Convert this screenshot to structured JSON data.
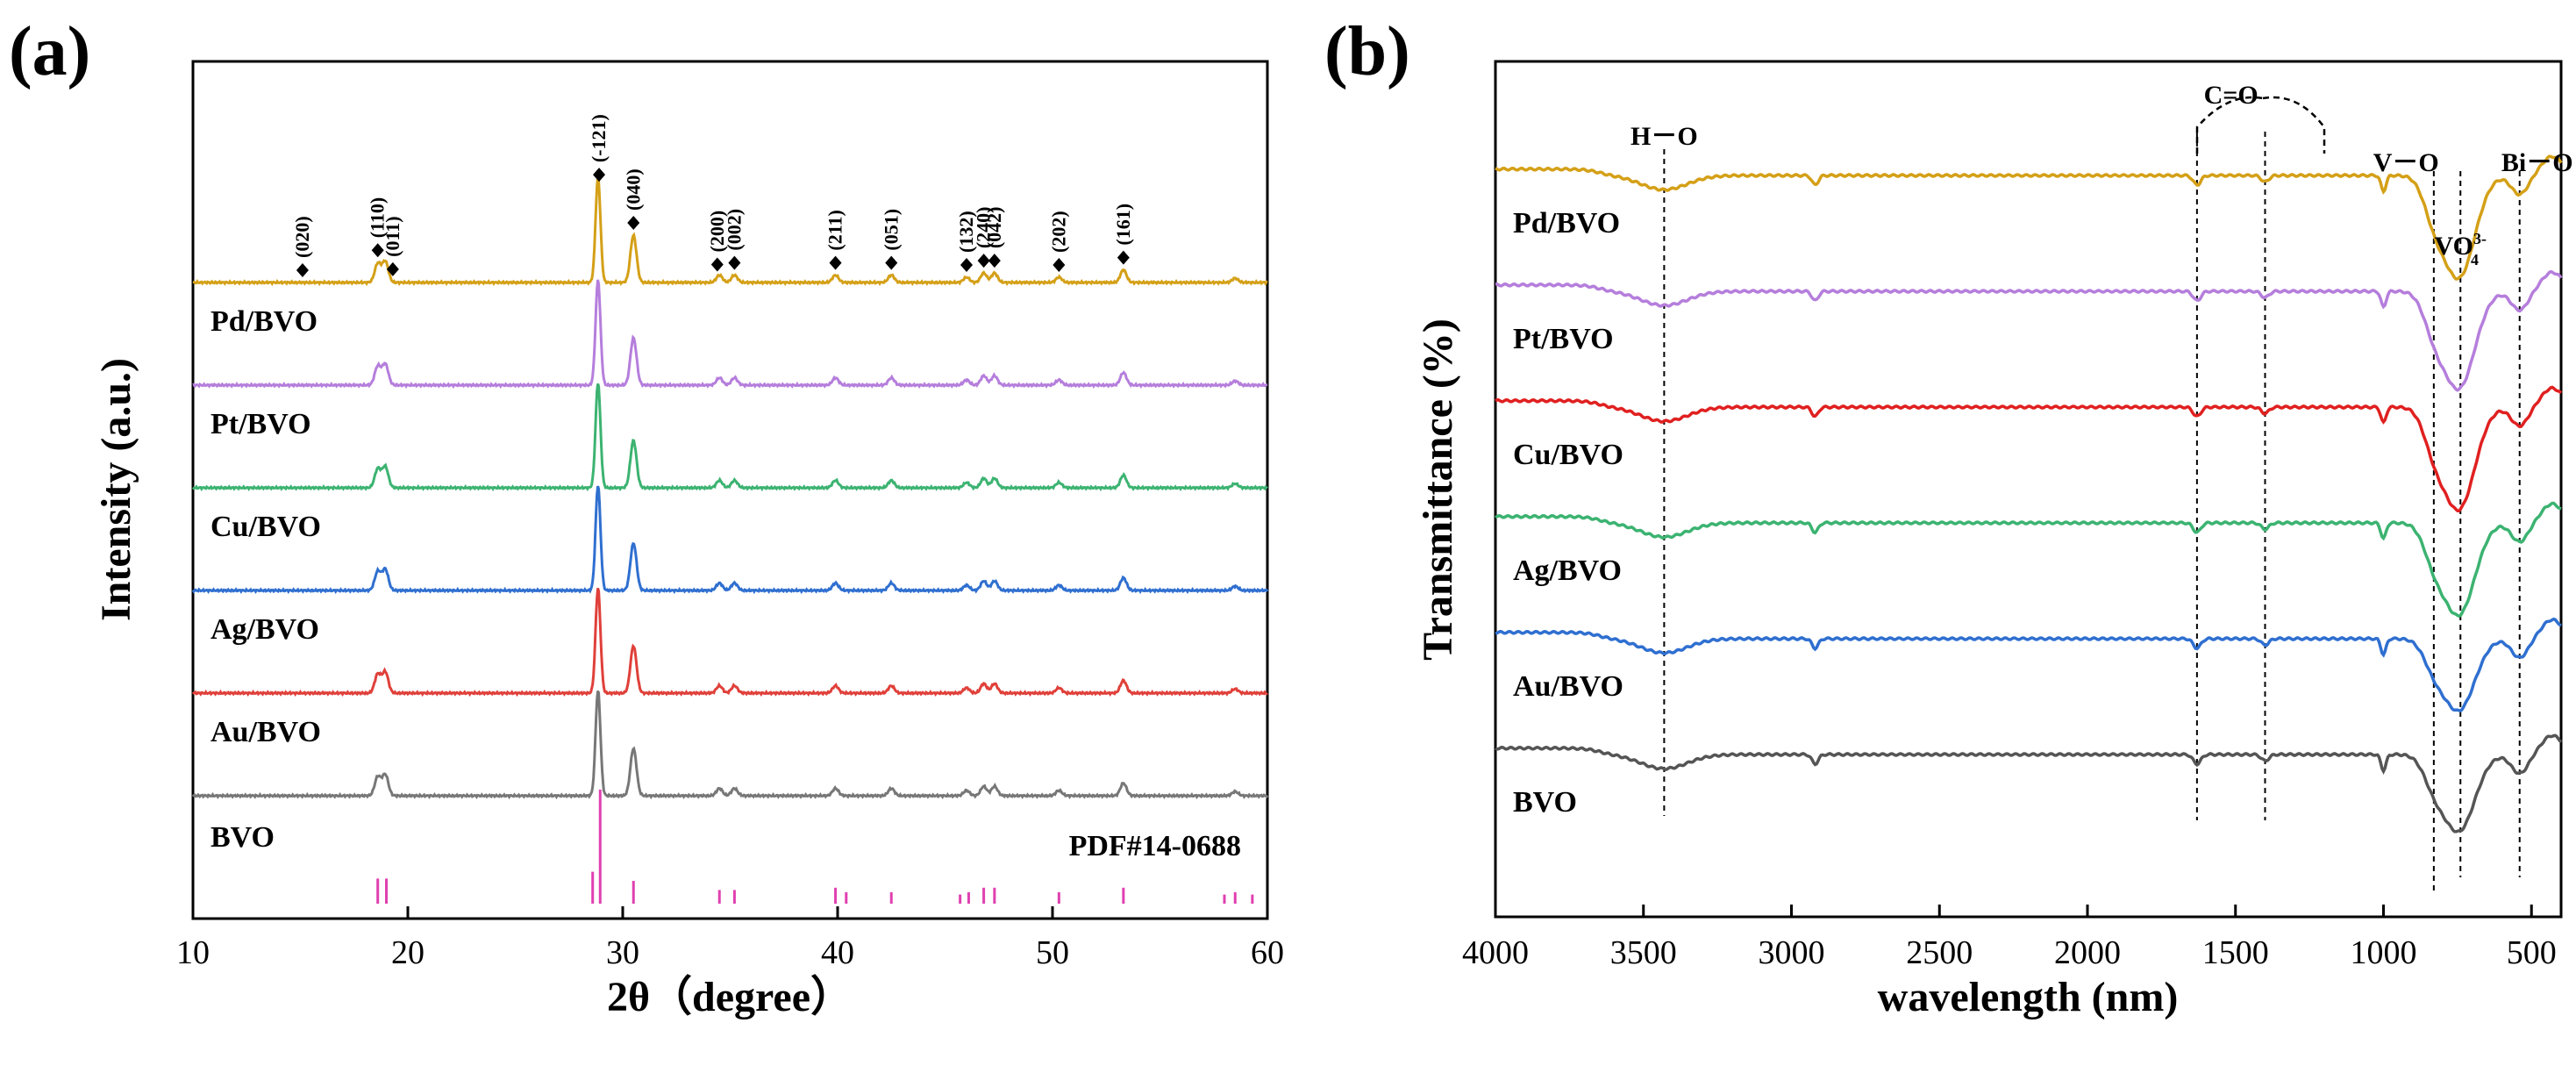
{
  "chart_data": [
    {
      "type": "line",
      "panel_label": "(a)",
      "xlabel": "2θ（degree）",
      "ylabel": "Intensity (a.u.)",
      "xlim": [
        10,
        60
      ],
      "xticks": [
        10,
        20,
        30,
        40,
        50,
        60
      ],
      "grid": false,
      "series": [
        {
          "name": "Pd/BVO",
          "color": "#d4a017"
        },
        {
          "name": "Pt/BVO",
          "color": "#b57edc"
        },
        {
          "name": "Cu/BVO",
          "color": "#3cb371"
        },
        {
          "name": "Ag/BVO",
          "color": "#2f6fd0"
        },
        {
          "name": "Au/BVO",
          "color": "#e0403a"
        },
        {
          "name": "BVO",
          "color": "#777777"
        }
      ],
      "peaks": [
        {
          "x": 18.6,
          "h": 0.18
        },
        {
          "x": 18.95,
          "h": 0.2
        },
        {
          "x": 28.85,
          "h": 1.0
        },
        {
          "x": 30.5,
          "h": 0.45
        },
        {
          "x": 34.5,
          "h": 0.07
        },
        {
          "x": 35.2,
          "h": 0.07
        },
        {
          "x": 39.9,
          "h": 0.07
        },
        {
          "x": 42.5,
          "h": 0.07
        },
        {
          "x": 46.0,
          "h": 0.05
        },
        {
          "x": 46.8,
          "h": 0.09
        },
        {
          "x": 47.3,
          "h": 0.09
        },
        {
          "x": 50.3,
          "h": 0.05
        },
        {
          "x": 53.3,
          "h": 0.12
        },
        {
          "x": 58.5,
          "h": 0.04
        }
      ],
      "reference": {
        "name": "PDF#14-0688",
        "color": "#e040b0",
        "lines": [
          {
            "x": 18.6,
            "h": 0.22
          },
          {
            "x": 19.0,
            "h": 0.22
          },
          {
            "x": 28.6,
            "h": 0.28
          },
          {
            "x": 28.95,
            "h": 1.0
          },
          {
            "x": 30.5,
            "h": 0.2
          },
          {
            "x": 34.5,
            "h": 0.12
          },
          {
            "x": 35.2,
            "h": 0.12
          },
          {
            "x": 39.9,
            "h": 0.14
          },
          {
            "x": 40.4,
            "h": 0.1
          },
          {
            "x": 42.5,
            "h": 0.1
          },
          {
            "x": 45.7,
            "h": 0.08
          },
          {
            "x": 46.1,
            "h": 0.1
          },
          {
            "x": 46.8,
            "h": 0.14
          },
          {
            "x": 47.3,
            "h": 0.14
          },
          {
            "x": 50.3,
            "h": 0.1
          },
          {
            "x": 53.3,
            "h": 0.14
          },
          {
            "x": 58.0,
            "h": 0.08
          },
          {
            "x": 58.5,
            "h": 0.1
          },
          {
            "x": 59.3,
            "h": 0.08
          }
        ]
      },
      "annotations": [
        {
          "text": "(020)",
          "x": 15.1
        },
        {
          "text": "(110)",
          "x": 18.6
        },
        {
          "text": "(011)",
          "x": 19.3
        },
        {
          "text": "(-121)",
          "x": 28.9
        },
        {
          "text": "(040)",
          "x": 30.5
        },
        {
          "text": "(200)",
          "x": 34.4
        },
        {
          "text": "(002)",
          "x": 35.2
        },
        {
          "text": "(211)",
          "x": 39.9
        },
        {
          "text": "(051)",
          "x": 42.5
        },
        {
          "text": "(132)",
          "x": 46.0
        },
        {
          "text": "(240)",
          "x": 46.8
        },
        {
          "text": "(042)",
          "x": 47.3
        },
        {
          "text": "(202)",
          "x": 50.3
        },
        {
          "text": "(161)",
          "x": 53.3
        }
      ]
    },
    {
      "type": "line",
      "panel_label": "(b)",
      "xlabel": "wavelength (nm)",
      "ylabel": "Transmittance (%)",
      "xlim": [
        4000,
        400
      ],
      "xticks": [
        4000,
        3500,
        3000,
        2500,
        2000,
        1500,
        1000,
        500
      ],
      "grid": false,
      "series": [
        {
          "name": "Pd/BVO",
          "color": "#d4a017",
          "dip_depth": 1.0
        },
        {
          "name": "Pt/BVO",
          "color": "#b57edc",
          "dip_depth": 0.95
        },
        {
          "name": "Cu/BVO",
          "color": "#e02020",
          "dip_depth": 1.0
        },
        {
          "name": "Ag/BVO",
          "color": "#3cb371",
          "dip_depth": 0.9
        },
        {
          "name": "Au/BVO",
          "color": "#2f6fd0",
          "dip_depth": 0.7
        },
        {
          "name": "BVO",
          "color": "#555555",
          "dip_depth": 0.75
        }
      ],
      "annotations": [
        {
          "text": "H－O",
          "x": 3430
        },
        {
          "text": "C=O",
          "x": 1515
        },
        {
          "text": "V－O",
          "x": 835
        },
        {
          "text": "VO43-",
          "x": 740
        },
        {
          "text": "Bi－O",
          "x": 540
        }
      ],
      "guide_lines": [
        3430,
        1630,
        1400,
        830,
        740,
        540
      ]
    }
  ]
}
